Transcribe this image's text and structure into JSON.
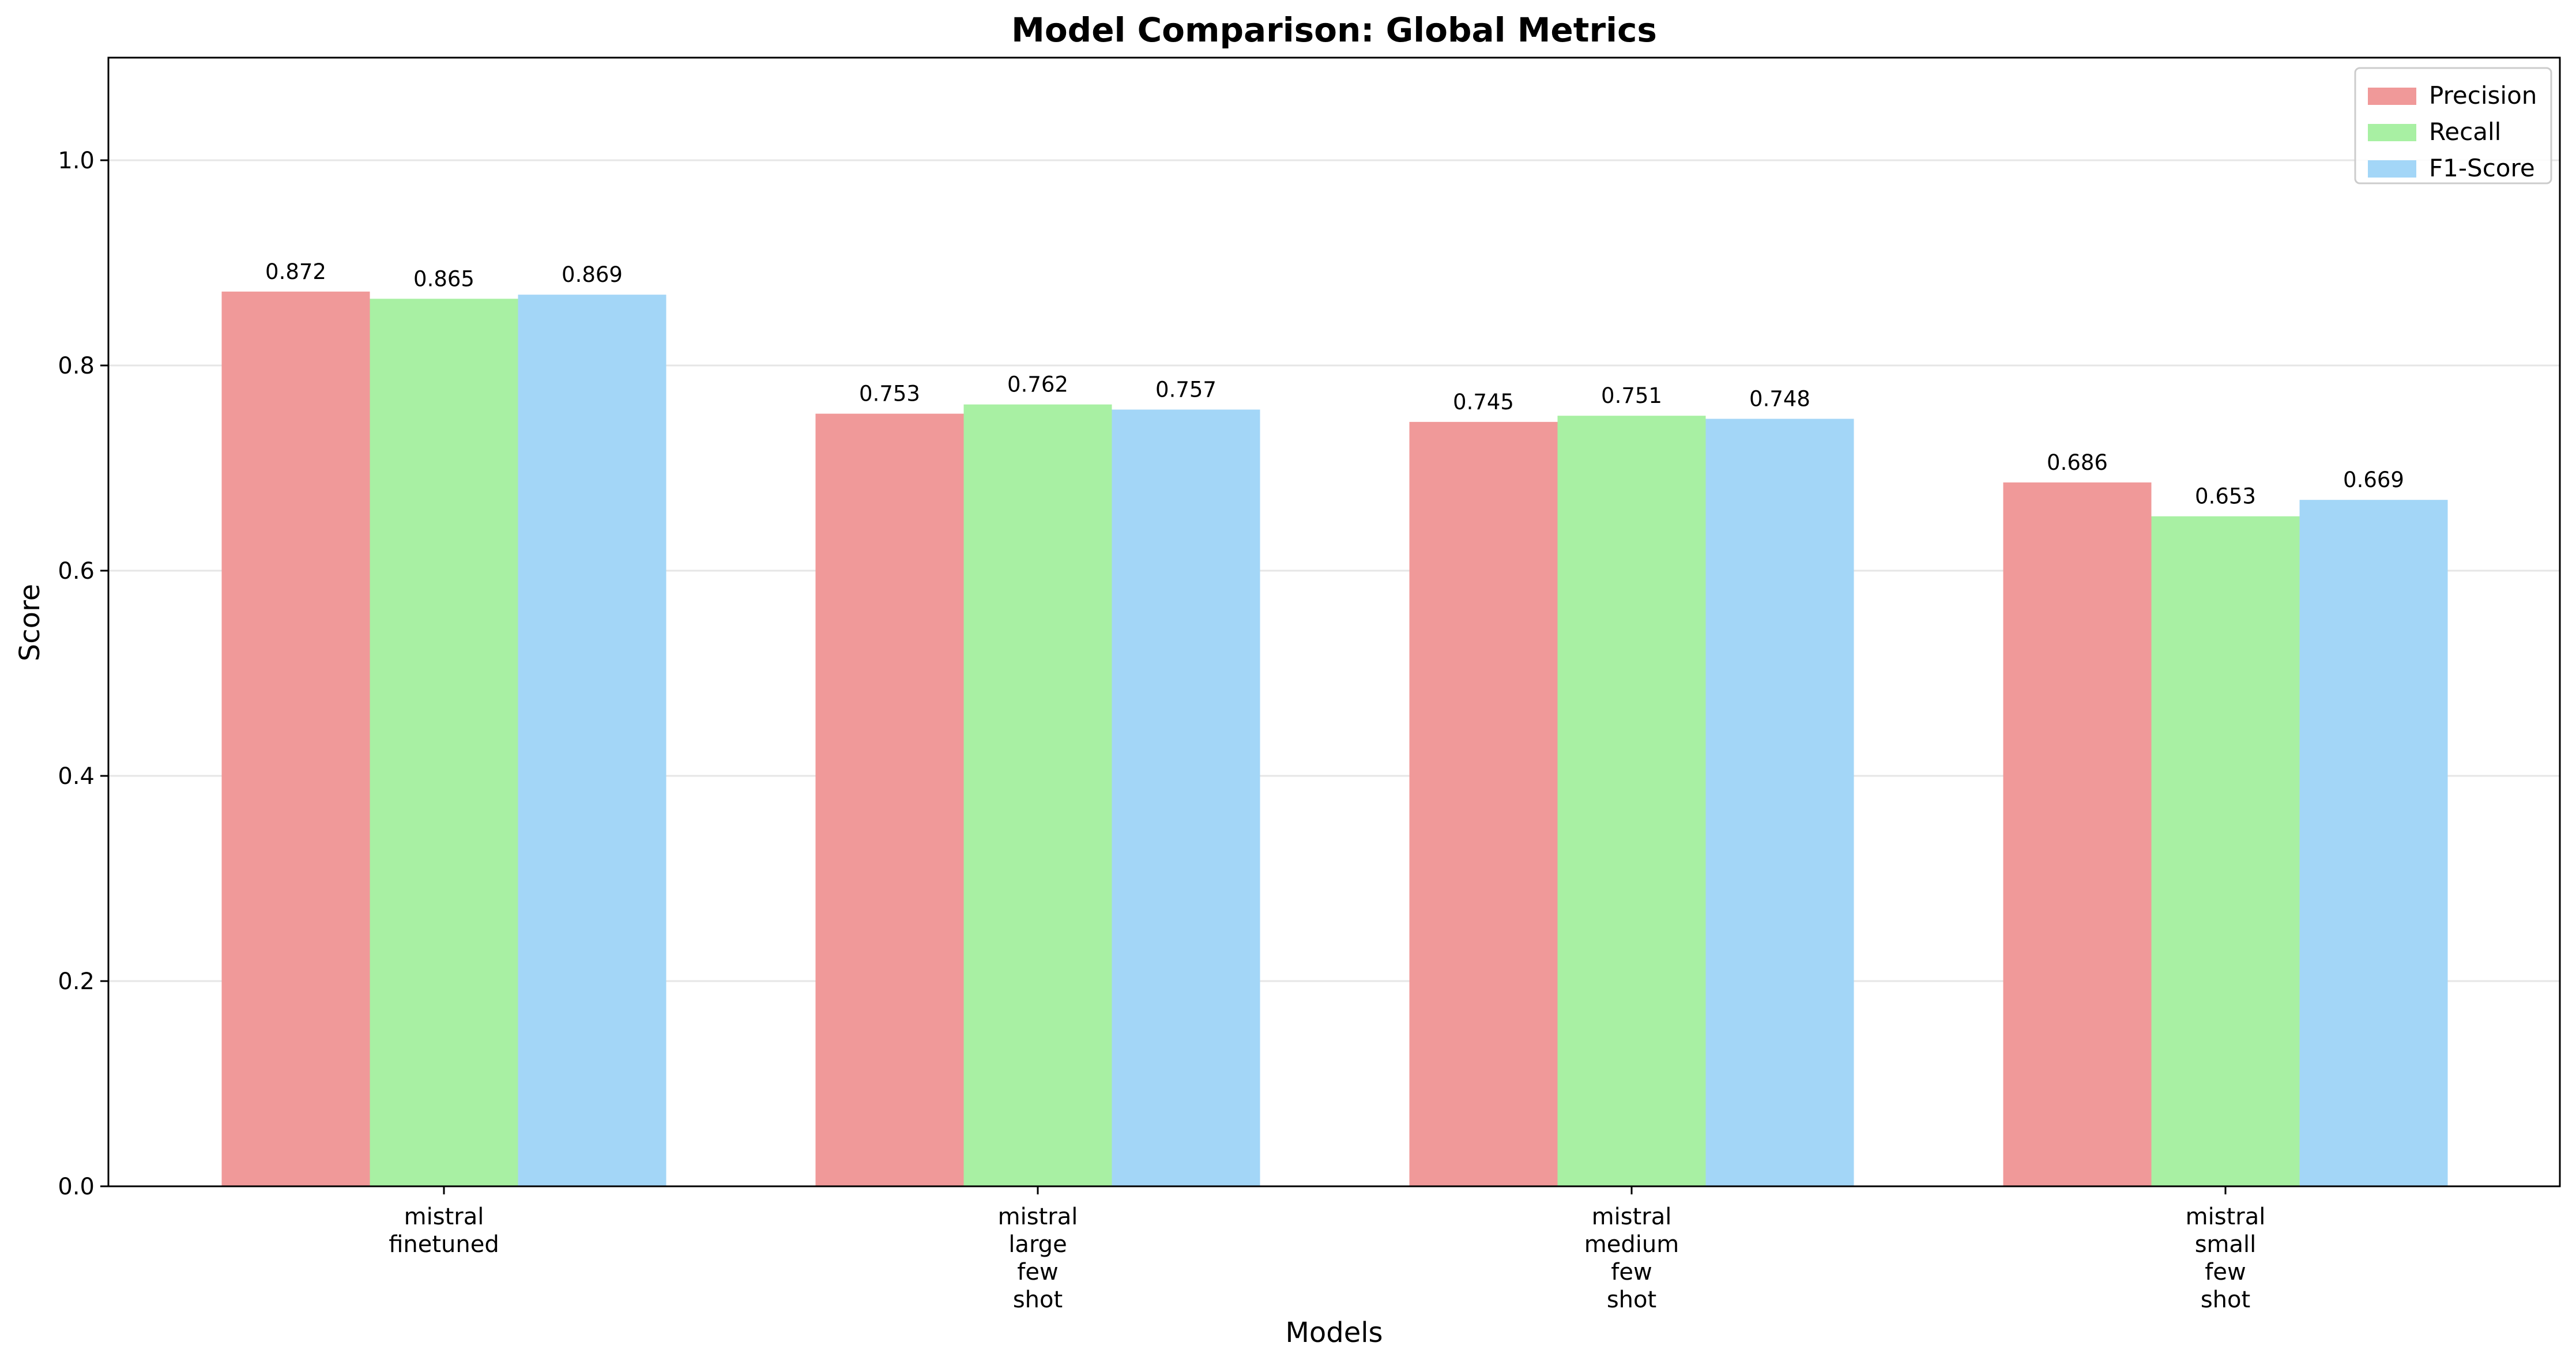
{
  "chart_data": {
    "type": "bar",
    "title": "Model Comparison: Global Metrics",
    "xlabel": "Models",
    "ylabel": "Score",
    "ylim": [
      0,
      1.1
    ],
    "yticks": [
      0.0,
      0.2,
      0.4,
      0.6,
      0.8,
      1.0
    ],
    "ytick_labels": [
      "0.0",
      "0.2",
      "0.4",
      "0.6",
      "0.8",
      "1.0"
    ],
    "grid": "horizontal",
    "legend_position": "top-right",
    "categories": [
      [
        "mistral",
        "finetuned"
      ],
      [
        "mistral",
        "large",
        "few",
        "shot"
      ],
      [
        "mistral",
        "medium",
        "few",
        "shot"
      ],
      [
        "mistral",
        "small",
        "few",
        "shot"
      ]
    ],
    "series": [
      {
        "name": "Precision",
        "color": "#f09999",
        "values": [
          0.872,
          0.753,
          0.745,
          0.686
        ],
        "labels": [
          "0.872",
          "0.753",
          "0.745",
          "0.686"
        ]
      },
      {
        "name": "Recall",
        "color": "#a8f0a3",
        "values": [
          0.865,
          0.762,
          0.751,
          0.653
        ],
        "labels": [
          "0.865",
          "0.762",
          "0.751",
          "0.653"
        ]
      },
      {
        "name": "F1-Score",
        "color": "#a3d6f7",
        "values": [
          0.869,
          0.757,
          0.748,
          0.669
        ],
        "labels": [
          "0.869",
          "0.757",
          "0.748",
          "0.669"
        ]
      }
    ]
  }
}
